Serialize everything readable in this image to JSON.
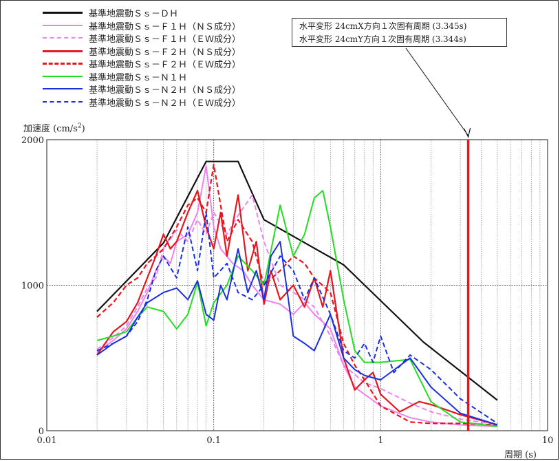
{
  "chart_data": {
    "type": "line",
    "xscale": "log",
    "xlim": [
      0.01,
      10
    ],
    "ylim": [
      0,
      2000
    ],
    "grid": true,
    "legend_position": "top-left",
    "xlabel": "周期 (s)",
    "ylabel_main": "加速度 (cm/s",
    "ylabel_sup": "2",
    "ylabel_end": ")",
    "xticks": [
      {
        "value": 0.01,
        "label": "0.01"
      },
      {
        "value": 0.1,
        "label": "0.1"
      },
      {
        "value": 1,
        "label": "1"
      },
      {
        "value": 10,
        "label": "10"
      }
    ],
    "yticks": [
      {
        "value": 0,
        "label": "0"
      },
      {
        "value": 1000,
        "label": "1000"
      },
      {
        "value": 2000,
        "label": "2000"
      }
    ],
    "annotation": {
      "lines": [
        "水平変形 24cmX方向１次固有周期 (3.345s)",
        "水平変形 24cmY方向１次固有周期 (3.344s)"
      ],
      "period": 3.345,
      "color": "#e8141e"
    },
    "series": [
      {
        "name": "基準地震動Ｓｓ－ＤＨ",
        "color": "#111111",
        "dash": false,
        "width": 2.2,
        "x": [
          0.02,
          0.05,
          0.09,
          0.14,
          0.2,
          0.6,
          1.8,
          5
        ],
        "y": [
          820,
          1290,
          1850,
          1850,
          1450,
          1140,
          610,
          210
        ]
      },
      {
        "name": "基準地震動Ｓｓ－Ｆ１Ｈ（ＮＳ成分）",
        "color": "#ee82ee",
        "dash": false,
        "width": 2,
        "x": [
          0.02,
          0.025,
          0.03,
          0.035,
          0.04,
          0.045,
          0.05,
          0.055,
          0.06,
          0.07,
          0.08,
          0.09,
          0.1,
          0.11,
          0.13,
          0.15,
          0.17,
          0.2,
          0.25,
          0.3,
          0.35,
          0.4,
          0.5,
          0.6,
          0.7,
          0.8,
          1,
          1.5,
          2,
          3,
          5
        ],
        "y": [
          540,
          620,
          700,
          820,
          950,
          1100,
          1200,
          1150,
          1300,
          1350,
          1500,
          1820,
          1400,
          1250,
          1150,
          1100,
          1000,
          900,
          870,
          800,
          880,
          800,
          700,
          450,
          300,
          250,
          170,
          90,
          60,
          40,
          30
        ]
      },
      {
        "name": "基準地震動Ｓｓ－Ｆ１Ｈ（ＥＷ成分）",
        "color": "#ee82ee",
        "dash": true,
        "width": 2,
        "x": [
          0.02,
          0.025,
          0.03,
          0.035,
          0.04,
          0.045,
          0.05,
          0.06,
          0.07,
          0.08,
          0.09,
          0.1,
          0.12,
          0.14,
          0.17,
          0.2,
          0.25,
          0.3,
          0.35,
          0.4,
          0.5,
          0.6,
          0.8,
          1,
          1.5,
          2,
          3,
          5
        ],
        "y": [
          560,
          640,
          720,
          850,
          980,
          1050,
          1250,
          1380,
          1300,
          1450,
          1350,
          1500,
          1350,
          1480,
          1620,
          1300,
          1000,
          950,
          900,
          850,
          650,
          450,
          330,
          290,
          190,
          130,
          80,
          40
        ]
      },
      {
        "name": "基準地震動Ｓｓ－Ｆ２Ｈ（ＮＳ成分）",
        "color": "#e8141e",
        "dash": false,
        "width": 2.2,
        "x": [
          0.02,
          0.025,
          0.03,
          0.035,
          0.04,
          0.045,
          0.05,
          0.055,
          0.06,
          0.07,
          0.08,
          0.09,
          0.1,
          0.11,
          0.12,
          0.14,
          0.16,
          0.18,
          0.2,
          0.22,
          0.25,
          0.3,
          0.35,
          0.4,
          0.45,
          0.5,
          0.6,
          0.7,
          0.8,
          0.9,
          1,
          1.3,
          1.7,
          2,
          3,
          5
        ],
        "y": [
          520,
          680,
          750,
          880,
          1050,
          1200,
          1350,
          1250,
          1300,
          1500,
          1650,
          1400,
          1250,
          1500,
          1200,
          1620,
          1100,
          1300,
          870,
          1100,
          900,
          1000,
          850,
          1050,
          850,
          1100,
          500,
          280,
          350,
          400,
          250,
          130,
          200,
          180,
          110,
          40
        ]
      },
      {
        "name": "基準地震動Ｓｓ－Ｆ２Ｈ（ＥＷ成分）",
        "color": "#e8141e",
        "dash": true,
        "width": 2.2,
        "x": [
          0.02,
          0.025,
          0.03,
          0.035,
          0.04,
          0.045,
          0.05,
          0.06,
          0.07,
          0.08,
          0.09,
          0.1,
          0.11,
          0.12,
          0.14,
          0.17,
          0.2,
          0.25,
          0.3,
          0.35,
          0.4,
          0.5,
          0.6,
          0.7,
          0.8,
          1,
          1.5,
          2,
          3,
          5
        ],
        "y": [
          780,
          880,
          1000,
          1050,
          1150,
          1200,
          1250,
          1400,
          1550,
          1600,
          1500,
          1830,
          1550,
          1300,
          1450,
          1300,
          1000,
          1100,
          1200,
          1150,
          1050,
          950,
          600,
          450,
          350,
          170,
          60,
          50,
          50,
          40
        ]
      },
      {
        "name": "基準地震動Ｓｓ－Ｎ１Ｈ",
        "color": "#22dd22",
        "dash": false,
        "width": 2,
        "x": [
          0.02,
          0.025,
          0.03,
          0.035,
          0.04,
          0.05,
          0.06,
          0.07,
          0.08,
          0.09,
          0.1,
          0.12,
          0.14,
          0.17,
          0.2,
          0.25,
          0.3,
          0.35,
          0.4,
          0.45,
          0.5,
          0.6,
          0.7,
          0.8,
          1,
          1.5,
          2,
          3,
          5
        ],
        "y": [
          620,
          650,
          680,
          780,
          850,
          820,
          700,
          800,
          1020,
          720,
          880,
          1000,
          1200,
          1100,
          1000,
          1550,
          1200,
          1350,
          1600,
          1650,
          1400,
          900,
          550,
          470,
          470,
          490,
          200,
          60,
          30
        ]
      },
      {
        "name": "基準地震動Ｓｓ－Ｎ２Ｈ（ＮＳ成分）",
        "color": "#1a2fe0",
        "dash": false,
        "width": 2,
        "x": [
          0.02,
          0.025,
          0.03,
          0.035,
          0.04,
          0.05,
          0.06,
          0.07,
          0.08,
          0.09,
          0.1,
          0.11,
          0.12,
          0.14,
          0.16,
          0.18,
          0.2,
          0.22,
          0.25,
          0.28,
          0.3,
          0.35,
          0.4,
          0.5,
          0.6,
          0.7,
          0.8,
          1,
          1.5,
          2,
          3,
          5
        ],
        "y": [
          520,
          600,
          650,
          780,
          880,
          950,
          980,
          900,
          1030,
          800,
          760,
          1000,
          900,
          1250,
          950,
          1100,
          900,
          1200,
          1300,
          900,
          650,
          600,
          550,
          800,
          500,
          420,
          380,
          350,
          500,
          300,
          120,
          40
        ]
      },
      {
        "name": "基準地震動Ｓｓ－Ｎ２Ｈ（ＥＷ成分）",
        "color": "#1a2fe0",
        "dash": true,
        "width": 2,
        "x": [
          0.02,
          0.025,
          0.03,
          0.035,
          0.04,
          0.045,
          0.05,
          0.06,
          0.07,
          0.08,
          0.09,
          0.1,
          0.12,
          0.14,
          0.17,
          0.2,
          0.25,
          0.3,
          0.35,
          0.4,
          0.5,
          0.6,
          0.7,
          0.8,
          0.9,
          1,
          1.2,
          1.5,
          2,
          3,
          5
        ],
        "y": [
          550,
          600,
          650,
          750,
          900,
          1100,
          1200,
          1050,
          1400,
          1100,
          1500,
          1050,
          1150,
          950,
          900,
          1000,
          1200,
          1100,
          900,
          1050,
          800,
          550,
          500,
          600,
          470,
          650,
          400,
          520,
          420,
          220,
          50
        ]
      }
    ]
  }
}
